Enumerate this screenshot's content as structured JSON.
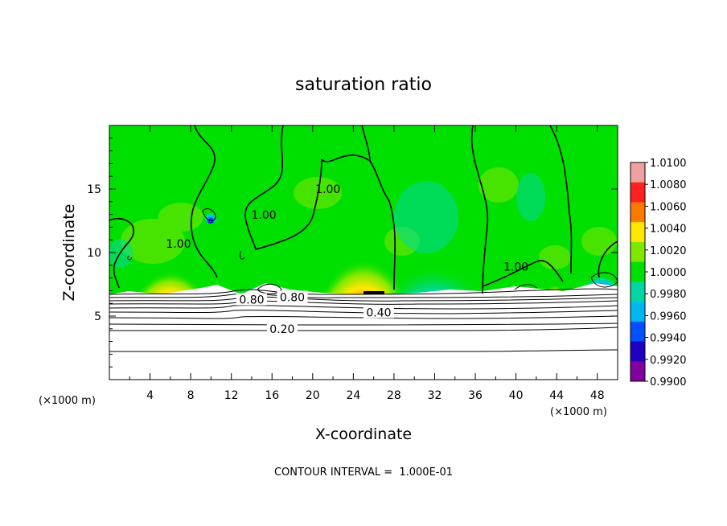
{
  "chart_data": {
    "type": "heatmap",
    "title": "saturation ratio",
    "xlabel": "X-coordinate",
    "ylabel": "Z-coordinate",
    "x_unit": "(×1000 m)",
    "xlim": [
      0,
      50
    ],
    "ylim": [
      0,
      20
    ],
    "x_ticks": [
      4,
      8,
      12,
      16,
      20,
      24,
      28,
      32,
      36,
      40,
      44,
      48
    ],
    "y_ticks": [
      5,
      10,
      15
    ],
    "colorbar": {
      "levels": [
        "1.0100",
        "1.0080",
        "1.0060",
        "1.0040",
        "1.0020",
        "1.0000",
        "0.9980",
        "0.9960",
        "0.9940",
        "0.9920",
        "0.9900"
      ],
      "colors": [
        "#f0a0a0",
        "#ff2020",
        "#ff7800",
        "#ffe800",
        "#80e800",
        "#00e000",
        "#00d8a0",
        "#00b8f0",
        "#0050ff",
        "#2000c0",
        "#8000a0"
      ]
    },
    "contour_labels": [
      {
        "text": "1.00",
        "x": 6.8,
        "z": 10.5
      },
      {
        "text": "1.00",
        "x": 15.2,
        "z": 12.8
      },
      {
        "text": "1.00",
        "x": 21.5,
        "z": 14.8
      },
      {
        "text": "1.00",
        "x": 40.0,
        "z": 8.7
      },
      {
        "text": "0.80",
        "x": 14.0,
        "z": 6.1
      },
      {
        "text": "0.80",
        "x": 18.0,
        "z": 6.3
      },
      {
        "text": "0.40",
        "x": 26.5,
        "z": 5.1
      },
      {
        "text": "0.20",
        "x": 17.0,
        "z": 3.8
      }
    ],
    "note": "CONTOUR INTERVAL =  1.000E-01"
  }
}
